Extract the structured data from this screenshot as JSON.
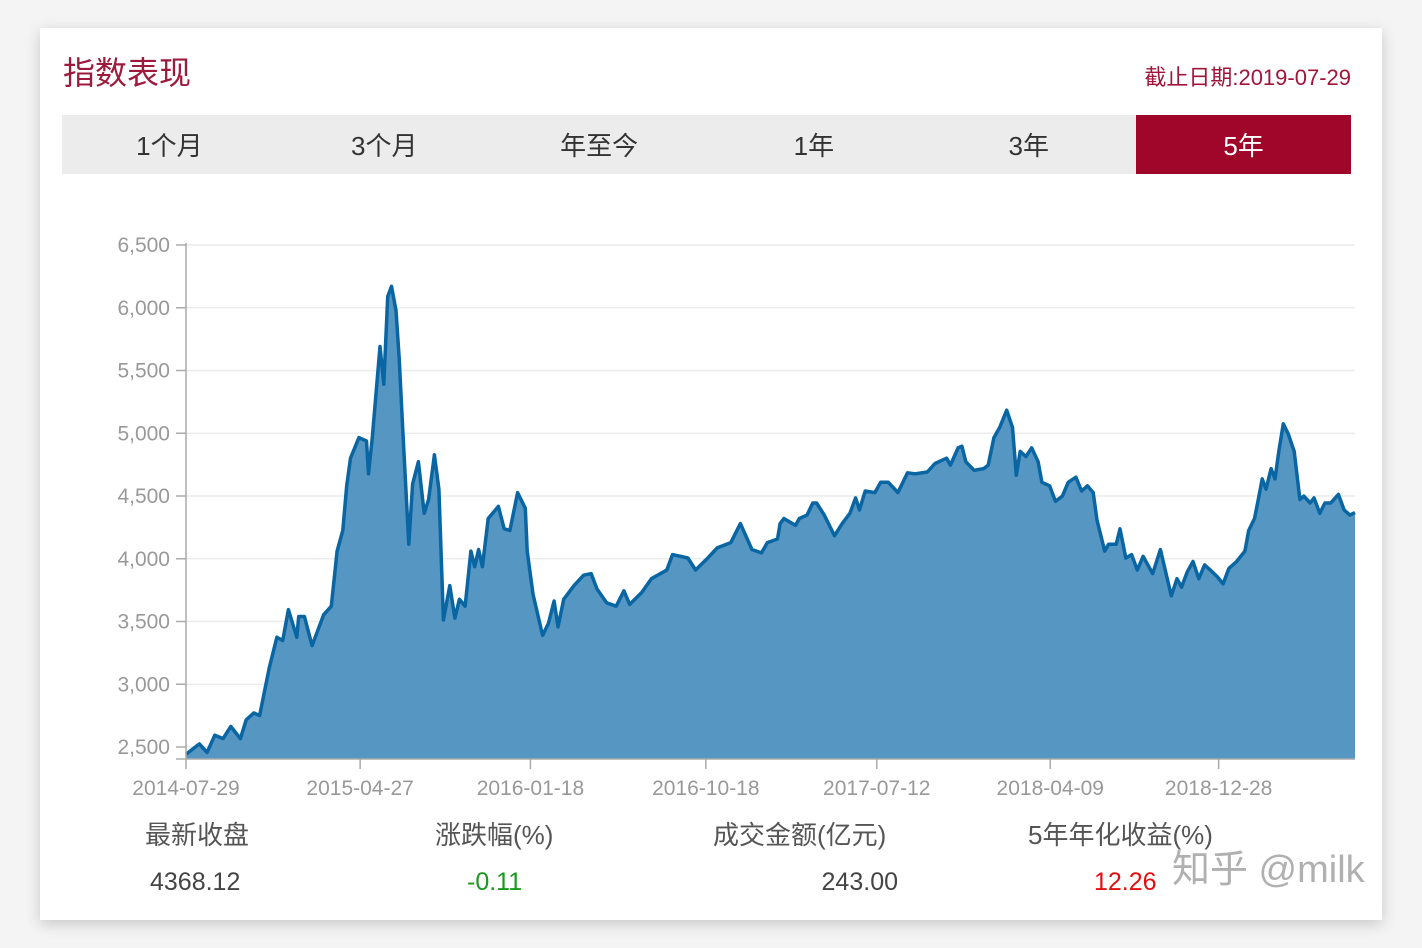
{
  "header": {
    "title": "指数表现",
    "as_of": "截止日期:2019-07-29"
  },
  "tabs": [
    {
      "label": "1个月",
      "active": false
    },
    {
      "label": "3个月",
      "active": false
    },
    {
      "label": "年至今",
      "active": false
    },
    {
      "label": "1年",
      "active": false
    },
    {
      "label": "3年",
      "active": false
    },
    {
      "label": "5年",
      "active": true
    }
  ],
  "colors": {
    "accent": "#a0052a",
    "line": "#0a65a3",
    "area": "#5596c3",
    "down": "#1a9a1a",
    "up": "#e01010"
  },
  "chart_data": {
    "type": "area",
    "xlabel": "",
    "ylabel": "",
    "xlim": [
      "2014-07-29",
      "2019-07-29"
    ],
    "ylim": [
      2500,
      6500
    ],
    "grid": true,
    "y_ticks": [
      "6,500",
      "6,000",
      "5,500",
      "5,000",
      "4,500",
      "4,000",
      "3,500",
      "3,000",
      "2,500"
    ],
    "y_tick_values": [
      6500,
      6000,
      5500,
      5000,
      4500,
      4000,
      3500,
      3000,
      2500
    ],
    "x_ticks": [
      "2014-07-29",
      "2015-04-27",
      "2016-01-18",
      "2016-10-18",
      "2017-07-12",
      "2018-04-09",
      "2018-12-28"
    ],
    "series": [
      {
        "x": [
          "2014-07-29",
          "2014-08-19",
          "2014-08-31",
          "2014-09-12",
          "2014-09-25",
          "2014-10-07",
          "2014-10-22",
          "2014-10-31",
          "2014-11-12",
          "2014-11-21",
          "2014-12-06",
          "2014-12-18",
          "2014-12-27",
          "2015-01-05",
          "2015-01-18",
          "2015-01-21",
          "2015-01-30",
          "2015-02-11",
          "2015-03-01",
          "2015-03-13",
          "2015-03-22",
          "2015-03-31",
          "2015-04-06",
          "2015-04-12",
          "2015-04-25",
          "2015-05-07",
          "2015-05-10",
          "2015-05-16",
          "2015-05-28",
          "2015-06-03",
          "2015-06-09",
          "2015-06-15",
          "2015-06-22",
          "2015-06-27",
          "2015-07-03",
          "2015-07-12",
          "2015-07-18",
          "2015-07-27",
          "2015-08-05",
          "2015-08-12",
          "2015-08-21",
          "2015-08-28",
          "2015-09-04",
          "2015-09-14",
          "2015-09-22",
          "2015-09-29",
          "2015-10-08",
          "2015-10-17",
          "2015-10-23",
          "2015-10-29",
          "2015-11-04",
          "2015-11-13",
          "2015-11-29",
          "2015-12-08",
          "2015-12-17",
          "2015-12-29",
          "2016-01-10",
          "2016-01-13",
          "2016-01-22",
          "2016-02-06",
          "2016-02-15",
          "2016-02-24",
          "2016-03-01",
          "2016-03-10",
          "2016-03-26",
          "2016-04-10",
          "2016-04-22",
          "2016-05-01",
          "2016-05-16",
          "2016-05-31",
          "2016-06-12",
          "2016-06-21",
          "2016-07-10",
          "2016-07-25",
          "2016-08-18",
          "2016-08-27",
          "2016-09-20",
          "2016-10-02",
          "2016-10-21",
          "2016-11-05",
          "2016-11-26",
          "2016-12-11",
          "2016-12-29",
          "2017-01-13",
          "2017-01-22",
          "2017-02-07",
          "2017-02-11",
          "2017-02-17",
          "2017-03-07",
          "2017-03-13",
          "2017-03-25",
          "2017-04-03",
          "2017-04-09",
          "2017-04-21",
          "2017-05-07",
          "2017-05-19",
          "2017-05-31",
          "2017-06-09",
          "2017-06-15",
          "2017-06-24",
          "2017-07-09",
          "2017-07-18",
          "2017-07-30",
          "2017-08-14",
          "2017-08-29",
          "2017-09-10",
          "2017-09-29",
          "2017-10-11",
          "2017-10-29",
          "2017-11-04",
          "2017-11-16",
          "2017-11-22",
          "2017-11-28",
          "2017-12-11",
          "2017-12-26",
          "2018-01-02",
          "2018-01-11",
          "2018-01-20",
          "2018-01-31",
          "2018-02-09",
          "2018-02-15",
          "2018-02-21",
          "2018-03-02",
          "2018-03-11",
          "2018-03-21",
          "2018-03-27",
          "2018-04-08",
          "2018-04-17",
          "2018-04-28",
          "2018-05-07",
          "2018-05-19",
          "2018-05-28",
          "2018-06-06",
          "2018-06-15",
          "2018-06-21",
          "2018-07-03",
          "2018-07-09",
          "2018-07-21",
          "2018-07-27",
          "2018-08-05",
          "2018-08-14",
          "2018-08-23",
          "2018-09-01",
          "2018-09-16",
          "2018-09-28",
          "2018-10-15",
          "2018-10-24",
          "2018-10-31",
          "2018-11-09",
          "2018-11-18",
          "2018-11-27",
          "2018-12-06",
          "2018-12-15",
          "2018-12-26",
          "2019-01-04",
          "2019-01-13",
          "2019-01-25",
          "2019-02-07",
          "2019-02-13",
          "2019-02-22",
          "2019-02-28",
          "2019-03-06",
          "2019-03-12",
          "2019-03-20",
          "2019-03-26",
          "2019-04-01",
          "2019-04-08",
          "2019-04-16",
          "2019-04-25",
          "2019-05-04",
          "2019-05-10",
          "2019-05-20",
          "2019-05-26",
          "2019-06-04",
          "2019-06-12",
          "2019-06-21",
          "2019-07-03",
          "2019-07-12",
          "2019-07-21",
          "2019-07-29"
        ],
        "y": [
          2443,
          2525,
          2457,
          2594,
          2567,
          2663,
          2567,
          2717,
          2772,
          2750,
          3129,
          3375,
          3348,
          3595,
          3375,
          3540,
          3540,
          3307,
          3553,
          3622,
          4061,
          4225,
          4581,
          4801,
          4965,
          4938,
          4677,
          4965,
          5691,
          5390,
          6089,
          6171,
          5979,
          5596,
          4992,
          4115,
          4595,
          4773,
          4362,
          4472,
          4828,
          4554,
          3512,
          3786,
          3526,
          3677,
          3622,
          4061,
          3937,
          4074,
          3937,
          4321,
          4417,
          4239,
          4225,
          4527,
          4403,
          4061,
          3718,
          3389,
          3485,
          3663,
          3457,
          3677,
          3786,
          3869,
          3882,
          3759,
          3649,
          3622,
          3745,
          3636,
          3732,
          3841,
          3910,
          4033,
          4006,
          3910,
          4006,
          4088,
          4129,
          4280,
          4074,
          4047,
          4129,
          4157,
          4280,
          4321,
          4266,
          4321,
          4348,
          4444,
          4444,
          4348,
          4184,
          4280,
          4362,
          4485,
          4389,
          4540,
          4527,
          4609,
          4609,
          4527,
          4685,
          4677,
          4691,
          4759,
          4801,
          4746,
          4883,
          4897,
          4773,
          4705,
          4718,
          4746,
          4965,
          5047,
          5184,
          5047,
          4664,
          4855,
          4814,
          4883,
          4773,
          4609,
          4581,
          4458,
          4499,
          4609,
          4650,
          4540,
          4581,
          4527,
          4307,
          4061,
          4115,
          4115,
          4239,
          4006,
          4033,
          3910,
          4019,
          3882,
          4074,
          3704,
          3841,
          3773,
          3896,
          3978,
          3841,
          3951,
          3910,
          3855,
          3800,
          3923,
          3978,
          4061,
          4225,
          4321,
          4472,
          4636,
          4554,
          4718,
          4636,
          4855,
          5075,
          4992,
          4855,
          4472,
          4499,
          4444,
          4485,
          4362,
          4444,
          4444,
          4513,
          4389,
          4348,
          4368.12
        ]
      }
    ]
  },
  "stats": [
    {
      "label": "最新收盘",
      "value": "4368.12"
    },
    {
      "label": "涨跌幅(%)",
      "value": "-0.11"
    },
    {
      "label": "成交金额(亿元)",
      "value": "243.00"
    },
    {
      "label": "5年年化收益(%)",
      "value": "12.26"
    }
  ],
  "watermark": "知乎 @milk"
}
